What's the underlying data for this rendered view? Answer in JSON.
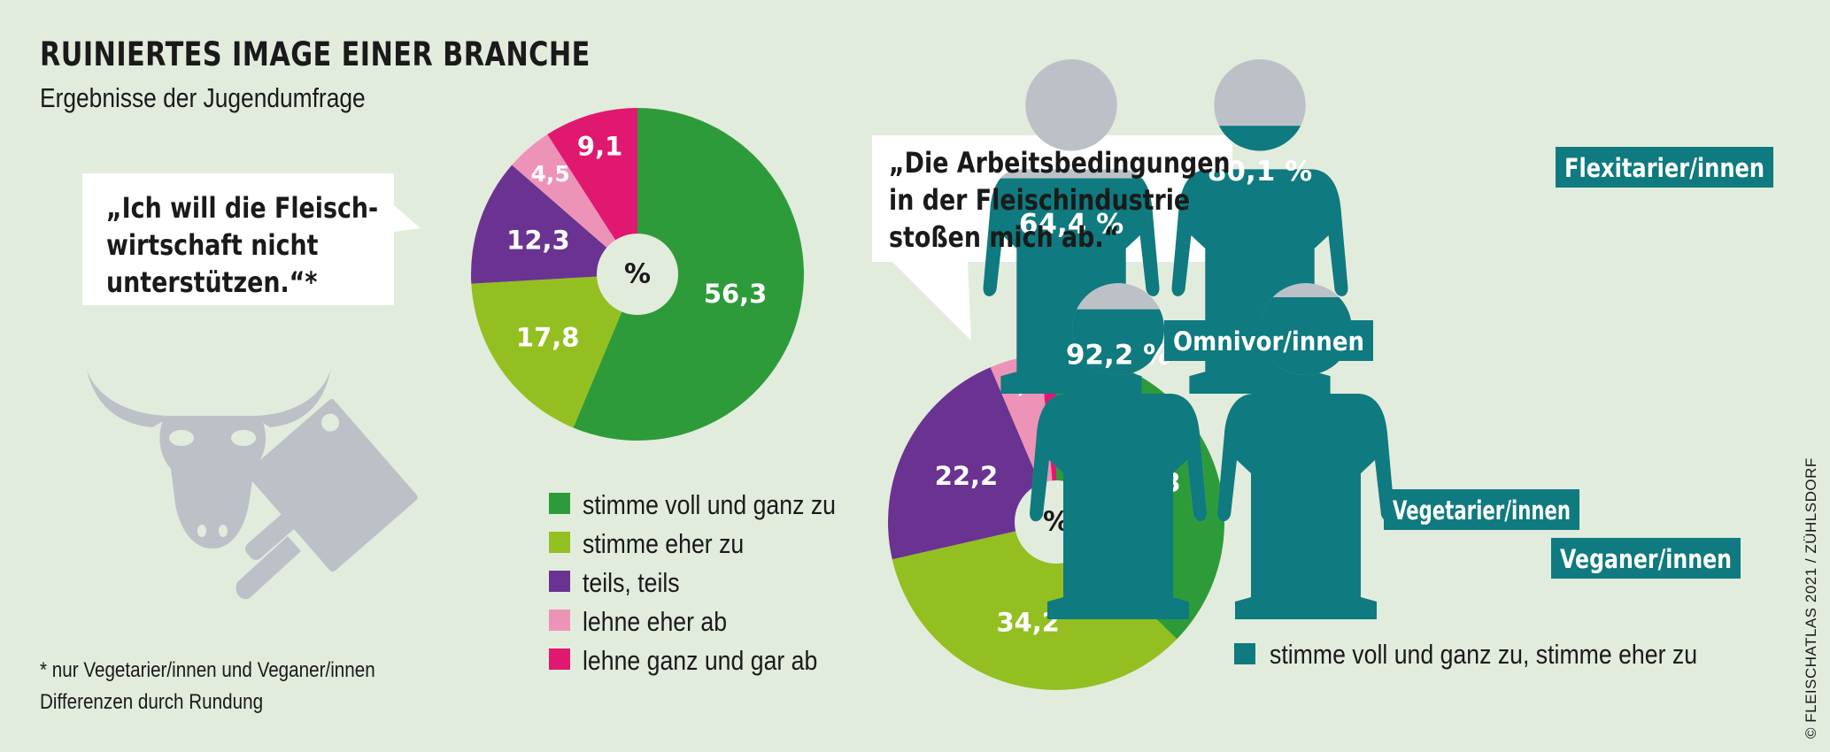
{
  "title": "RUINIERTES IMAGE EINER BRANCHE",
  "subtitle": "Ergebnisse der Jugendumfrage",
  "colors": {
    "background": "#e2ecdd",
    "strongly_agree": "#2e9b3a",
    "agree": "#93c020",
    "neutral": "#6a3391",
    "disagree": "#ee93b8",
    "strongly_disagree": "#e0186f",
    "teal": "#0f7a7f",
    "gray": "#bcc1c8"
  },
  "bubbles": {
    "left": [
      "„Ich will die Fleisch-",
      "wirtschaft nicht",
      "unterstützen.“*"
    ],
    "right": [
      "„Die Arbeitsbedingungen",
      "in der Fleischindustrie",
      "stoßen mich ab.“"
    ]
  },
  "legend": [
    "stimme voll und ganz zu",
    "stimme eher zu",
    "teils, teils",
    "lehne eher ab",
    "lehne ganz und gar ab"
  ],
  "teal_legend": "stimme voll und ganz zu, stimme eher zu",
  "notes": [
    "* nur Vegetarier/innen und Veganer/innen",
    "Differenzen durch Rundung"
  ],
  "credit": "© FLEISCHATLAS 2021 / ZÜHLSDORF",
  "chart_data": [
    {
      "type": "pie",
      "title": "„Ich will die Fleischwirtschaft nicht unterstützen.“*",
      "center_label": "%",
      "categories": [
        "stimme voll und ganz zu",
        "stimme eher zu",
        "teils, teils",
        "lehne eher ab",
        "lehne ganz und gar ab"
      ],
      "values": [
        56.3,
        17.8,
        12.3,
        4.5,
        9.1
      ],
      "labels": [
        "56,3",
        "17,8",
        "12,3",
        "4,5",
        "9,1"
      ]
    },
    {
      "type": "pie",
      "title": "„Die Arbeitsbedingungen in der Fleischindustrie stoßen mich ab.“",
      "center_label": "%",
      "categories": [
        "stimme voll und ganz zu",
        "stimme eher zu",
        "teils, teils",
        "lehne eher ab",
        "lehne ganz und gar ab"
      ],
      "values": [
        37.3,
        34.2,
        22.2,
        4.9,
        1.5
      ],
      "labels": [
        "37,3",
        "34,2",
        "22,2",
        "4,9",
        "1,5"
      ]
    },
    {
      "type": "bar",
      "title": "„Die Arbeitsbedingungen in der Fleischindustrie stoßen mich ab.“",
      "categories": [
        "Omnivor/innen",
        "Flexitarier/innen",
        "Vegetarier/innen",
        "Veganer/innen"
      ],
      "values": [
        64.4,
        80.1,
        92.2,
        95.8
      ],
      "labels": [
        "64,4 %",
        "80,1 %",
        "92,2 %",
        "95,8 %"
      ],
      "series_name": "stimme voll und ganz zu, stimme eher zu",
      "ylim": [
        0,
        100
      ]
    }
  ]
}
